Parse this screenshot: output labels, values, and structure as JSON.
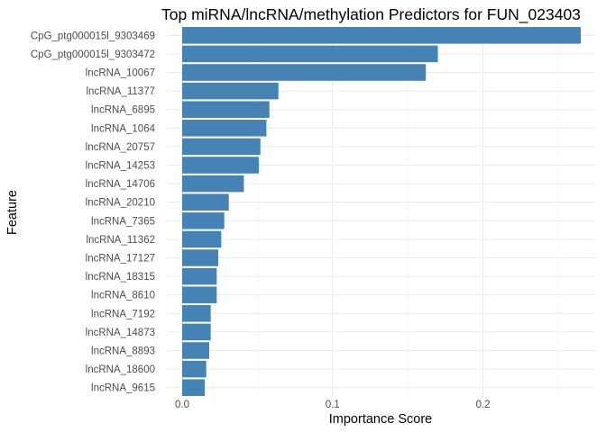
{
  "chart_data": {
    "type": "bar",
    "orientation": "horizontal",
    "title": "Top miRNA/lncRNA/methylation Predictors for FUN_023403",
    "xlabel": "Importance Score",
    "ylabel": "Feature",
    "xlim": [
      0,
      0.27
    ],
    "xticks": [
      0.0,
      0.1,
      0.2
    ],
    "xtick_labels": [
      "0.0",
      "0.1",
      "0.2"
    ],
    "grid": true,
    "bar_color": "#4682B4",
    "categories": [
      "CpG_ptg000015l_9303469",
      "CpG_ptg000015l_9303472",
      "lncRNA_10067",
      "lncRNA_11377",
      "lncRNA_6895",
      "lncRNA_1064",
      "lncRNA_20757",
      "lncRNA_14253",
      "lncRNA_14706",
      "lncRNA_20210",
      "lncRNA_7365",
      "lncRNA_11362",
      "lncRNA_17127",
      "lncRNA_18315",
      "lncRNA_8610",
      "lncRNA_7192",
      "lncRNA_14873",
      "lncRNA_8893",
      "lncRNA_18600",
      "lncRNA_9615"
    ],
    "values": [
      0.265,
      0.17,
      0.162,
      0.064,
      0.058,
      0.056,
      0.052,
      0.051,
      0.041,
      0.031,
      0.028,
      0.026,
      0.024,
      0.023,
      0.023,
      0.019,
      0.019,
      0.018,
      0.016,
      0.015
    ]
  }
}
